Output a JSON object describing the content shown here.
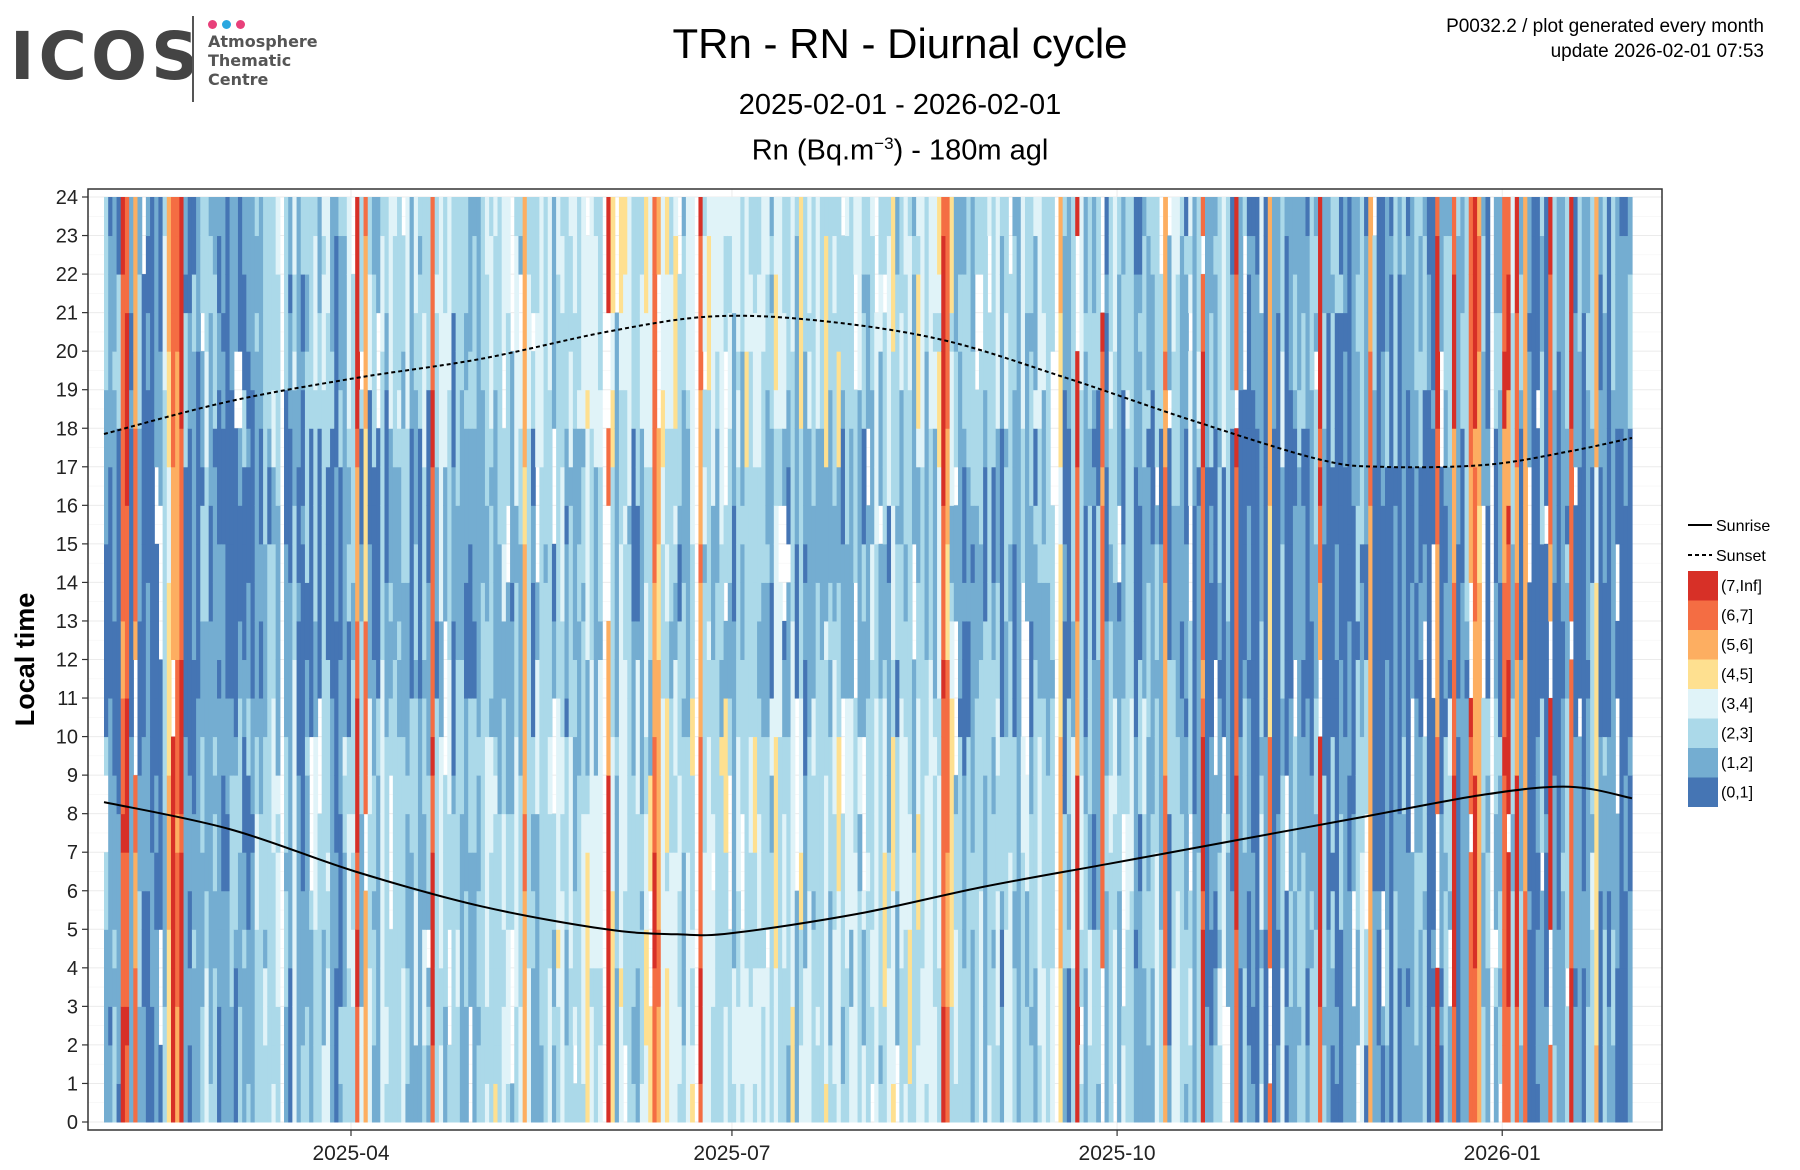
{
  "logo": {
    "word": "ICOS",
    "line1": "Atmosphere",
    "line2": "Thematic",
    "line3": "Centre",
    "dot_colors": [
      "#e8407a",
      "#2aa7e0",
      "#e8407a"
    ]
  },
  "header": {
    "title": "TRn - RN - Diurnal cycle",
    "date_range": "2025-02-01 - 2026-02-01",
    "subtitle_prefix": "Rn (Bq.m",
    "subtitle_exponent": "−3",
    "subtitle_suffix": ") - 180m agl",
    "plot_id": "P0032.2 / plot generated every month",
    "update": "update  2026-02-01 07:53"
  },
  "chart_data": {
    "type": "heatmap",
    "title": "TRn - RN - Diurnal cycle",
    "xlabel": "",
    "ylabel": "Local time",
    "x_range": [
      "2025-02-01",
      "2026-02-01"
    ],
    "x_ticks": [
      {
        "date": "2025-04-01",
        "label": "2025-04"
      },
      {
        "date": "2025-07-01",
        "label": "2025-07"
      },
      {
        "date": "2025-10-01",
        "label": "2025-10"
      },
      {
        "date": "2026-01-01",
        "label": "2026-01"
      }
    ],
    "ylim": [
      0,
      24
    ],
    "y_ticks": [
      0,
      1,
      2,
      3,
      4,
      5,
      6,
      7,
      8,
      9,
      10,
      11,
      12,
      13,
      14,
      15,
      16,
      17,
      18,
      19,
      20,
      21,
      22,
      23,
      24
    ],
    "grid": true,
    "legend_position": "right",
    "legend_lines": [
      {
        "label": "Sunrise",
        "style": "solid"
      },
      {
        "label": "Sunset",
        "style": "dashed"
      }
    ],
    "bins": [
      {
        "label": "(7,Inf]",
        "color": "#d73027"
      },
      {
        "label": "(6,7]",
        "color": "#f46d43"
      },
      {
        "label": "(5,6]",
        "color": "#fdae61"
      },
      {
        "label": "(4,5]",
        "color": "#fee090"
      },
      {
        "label": "(3,4]",
        "color": "#e0f3f8"
      },
      {
        "label": "(2,3]",
        "color": "#abd9e9"
      },
      {
        "label": "(1,2]",
        "color": "#74add1"
      },
      {
        "label": "(0,1]",
        "color": "#4575b4"
      }
    ],
    "sunrise": {
      "days": [
        0,
        30,
        60,
        90,
        120,
        137,
        150,
        180,
        210,
        240,
        270,
        300,
        330,
        350,
        365
      ],
      "hours": [
        8.3,
        7.6,
        6.5,
        5.6,
        5.0,
        4.87,
        4.9,
        5.4,
        6.1,
        6.7,
        7.3,
        7.9,
        8.5,
        8.7,
        8.4
      ]
    },
    "sunset": {
      "days": [
        0,
        30,
        60,
        90,
        120,
        145,
        170,
        200,
        230,
        260,
        290,
        305,
        330,
        350,
        365
      ],
      "hours": [
        17.85,
        18.7,
        19.3,
        19.8,
        20.5,
        20.9,
        20.8,
        20.3,
        19.3,
        18.2,
        17.2,
        17.0,
        17.05,
        17.4,
        17.75
      ]
    },
    "episodes": [
      {
        "day": 4,
        "bin": 0
      },
      {
        "day": 5,
        "bin": 0
      },
      {
        "day": 7,
        "bin": 1
      },
      {
        "day": 15,
        "bin": 2
      },
      {
        "day": 16,
        "bin": 0
      },
      {
        "day": 17,
        "bin": 1
      },
      {
        "day": 18,
        "bin": 0
      },
      {
        "day": 60,
        "bin": 0
      },
      {
        "day": 62,
        "bin": 1
      },
      {
        "day": 78,
        "bin": 0
      },
      {
        "day": 100,
        "bin": 1
      },
      {
        "day": 120,
        "bin": 0
      },
      {
        "day": 131,
        "bin": 0
      },
      {
        "day": 132,
        "bin": 1
      },
      {
        "day": 142,
        "bin": 0
      },
      {
        "day": 200,
        "bin": 0
      },
      {
        "day": 201,
        "bin": 1
      },
      {
        "day": 228,
        "bin": 2
      },
      {
        "day": 232,
        "bin": 0
      },
      {
        "day": 238,
        "bin": 0
      },
      {
        "day": 253,
        "bin": 1
      },
      {
        "day": 262,
        "bin": 0
      },
      {
        "day": 270,
        "bin": 0
      },
      {
        "day": 278,
        "bin": 1
      },
      {
        "day": 290,
        "bin": 0
      },
      {
        "day": 302,
        "bin": 1
      },
      {
        "day": 318,
        "bin": 0
      },
      {
        "day": 322,
        "bin": 0
      },
      {
        "day": 326,
        "bin": 0
      },
      {
        "day": 327,
        "bin": 0
      },
      {
        "day": 328,
        "bin": 1
      },
      {
        "day": 334,
        "bin": 0
      },
      {
        "day": 335,
        "bin": 0
      },
      {
        "day": 337,
        "bin": 0
      },
      {
        "day": 339,
        "bin": 1
      },
      {
        "day": 345,
        "bin": 0
      },
      {
        "day": 350,
        "bin": 0
      },
      {
        "day": 356,
        "bin": 2
      }
    ],
    "missing_days": [
      42,
      119,
      141,
      227,
      331
    ]
  }
}
